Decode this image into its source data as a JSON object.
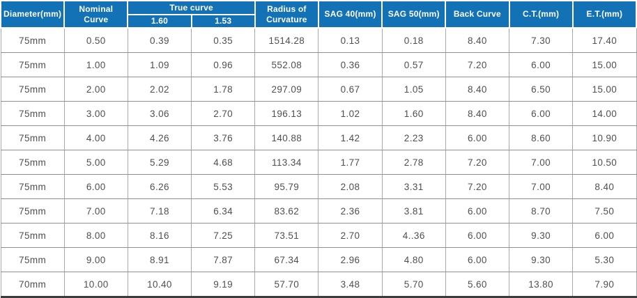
{
  "table": {
    "title": "contact-lens-curve-specification-table",
    "header": {
      "diameter": "Diameter(mm)",
      "nominal_curve": "Nominal Curve",
      "true_curve": "True curve",
      "true_curve_index_1": "1.60",
      "true_curve_index_2": "1.53",
      "radius_of_curvature": "Radius of Curvature",
      "sag_40": "SAG 40(mm)",
      "sag_50": "SAG 50(mm)",
      "back_curve": "Back Curve",
      "ct": "C.T.(mm)",
      "et": "E.T.(mm)"
    },
    "rows": [
      [
        "75mm",
        "0.50",
        "0.39",
        "0.35",
        "1514.28",
        "0.13",
        "0.18",
        "8.40",
        "7.30",
        "17.40"
      ],
      [
        "75mm",
        "1.00",
        "1.09",
        "0.96",
        "552.08",
        "0.36",
        "0.57",
        "7.20",
        "6.00",
        "15.00"
      ],
      [
        "75mm",
        "2.00",
        "2.02",
        "1.78",
        "297.09",
        "0.67",
        "1.05",
        "8.40",
        "6.50",
        "15.00"
      ],
      [
        "75mm",
        "3.00",
        "3.06",
        "2.70",
        "196.13",
        "1.02",
        "1.60",
        "8.40",
        "6.00",
        "14.00"
      ],
      [
        "75mm",
        "4.00",
        "4.26",
        "3.76",
        "140.88",
        "1.42",
        "2.23",
        "6.00",
        "8.60",
        "10.90"
      ],
      [
        "75mm",
        "5.00",
        "5.29",
        "4.68",
        "113.34",
        "1.77",
        "2.78",
        "7.20",
        "7.00",
        "10.50"
      ],
      [
        "75mm",
        "6.00",
        "6.26",
        "5.53",
        "95.79",
        "2.08",
        "3.31",
        "7.20",
        "7.00",
        "8.40"
      ],
      [
        "75mm",
        "7.00",
        "7.18",
        "6.34",
        "83.62",
        "2.36",
        "3.81",
        "6.00",
        "8.70",
        "7.50"
      ],
      [
        "75mm",
        "8.00",
        "8.16",
        "7.25",
        "73.51",
        "2.70",
        "4..36",
        "6.00",
        "9.30",
        "6.00"
      ],
      [
        "75mm",
        "9.00",
        "8.91",
        "7.87",
        "67.34",
        "2.96",
        "4.80",
        "6.00",
        "9.30",
        "5.30"
      ],
      [
        "70mm",
        "10.00",
        "10.40",
        "9.19",
        "57.70",
        "3.48",
        "5.70",
        "5.60",
        "13.80",
        "7.90"
      ]
    ]
  },
  "colors": {
    "header_bg": "#1272b5",
    "header_text": "#ffffff",
    "body_text": "#4f4f4f",
    "grid_line_horizontal": "#8f8f8f",
    "grid_line_vertical": "#a9a9a9",
    "bottom_border": "#3c3c3c"
  }
}
